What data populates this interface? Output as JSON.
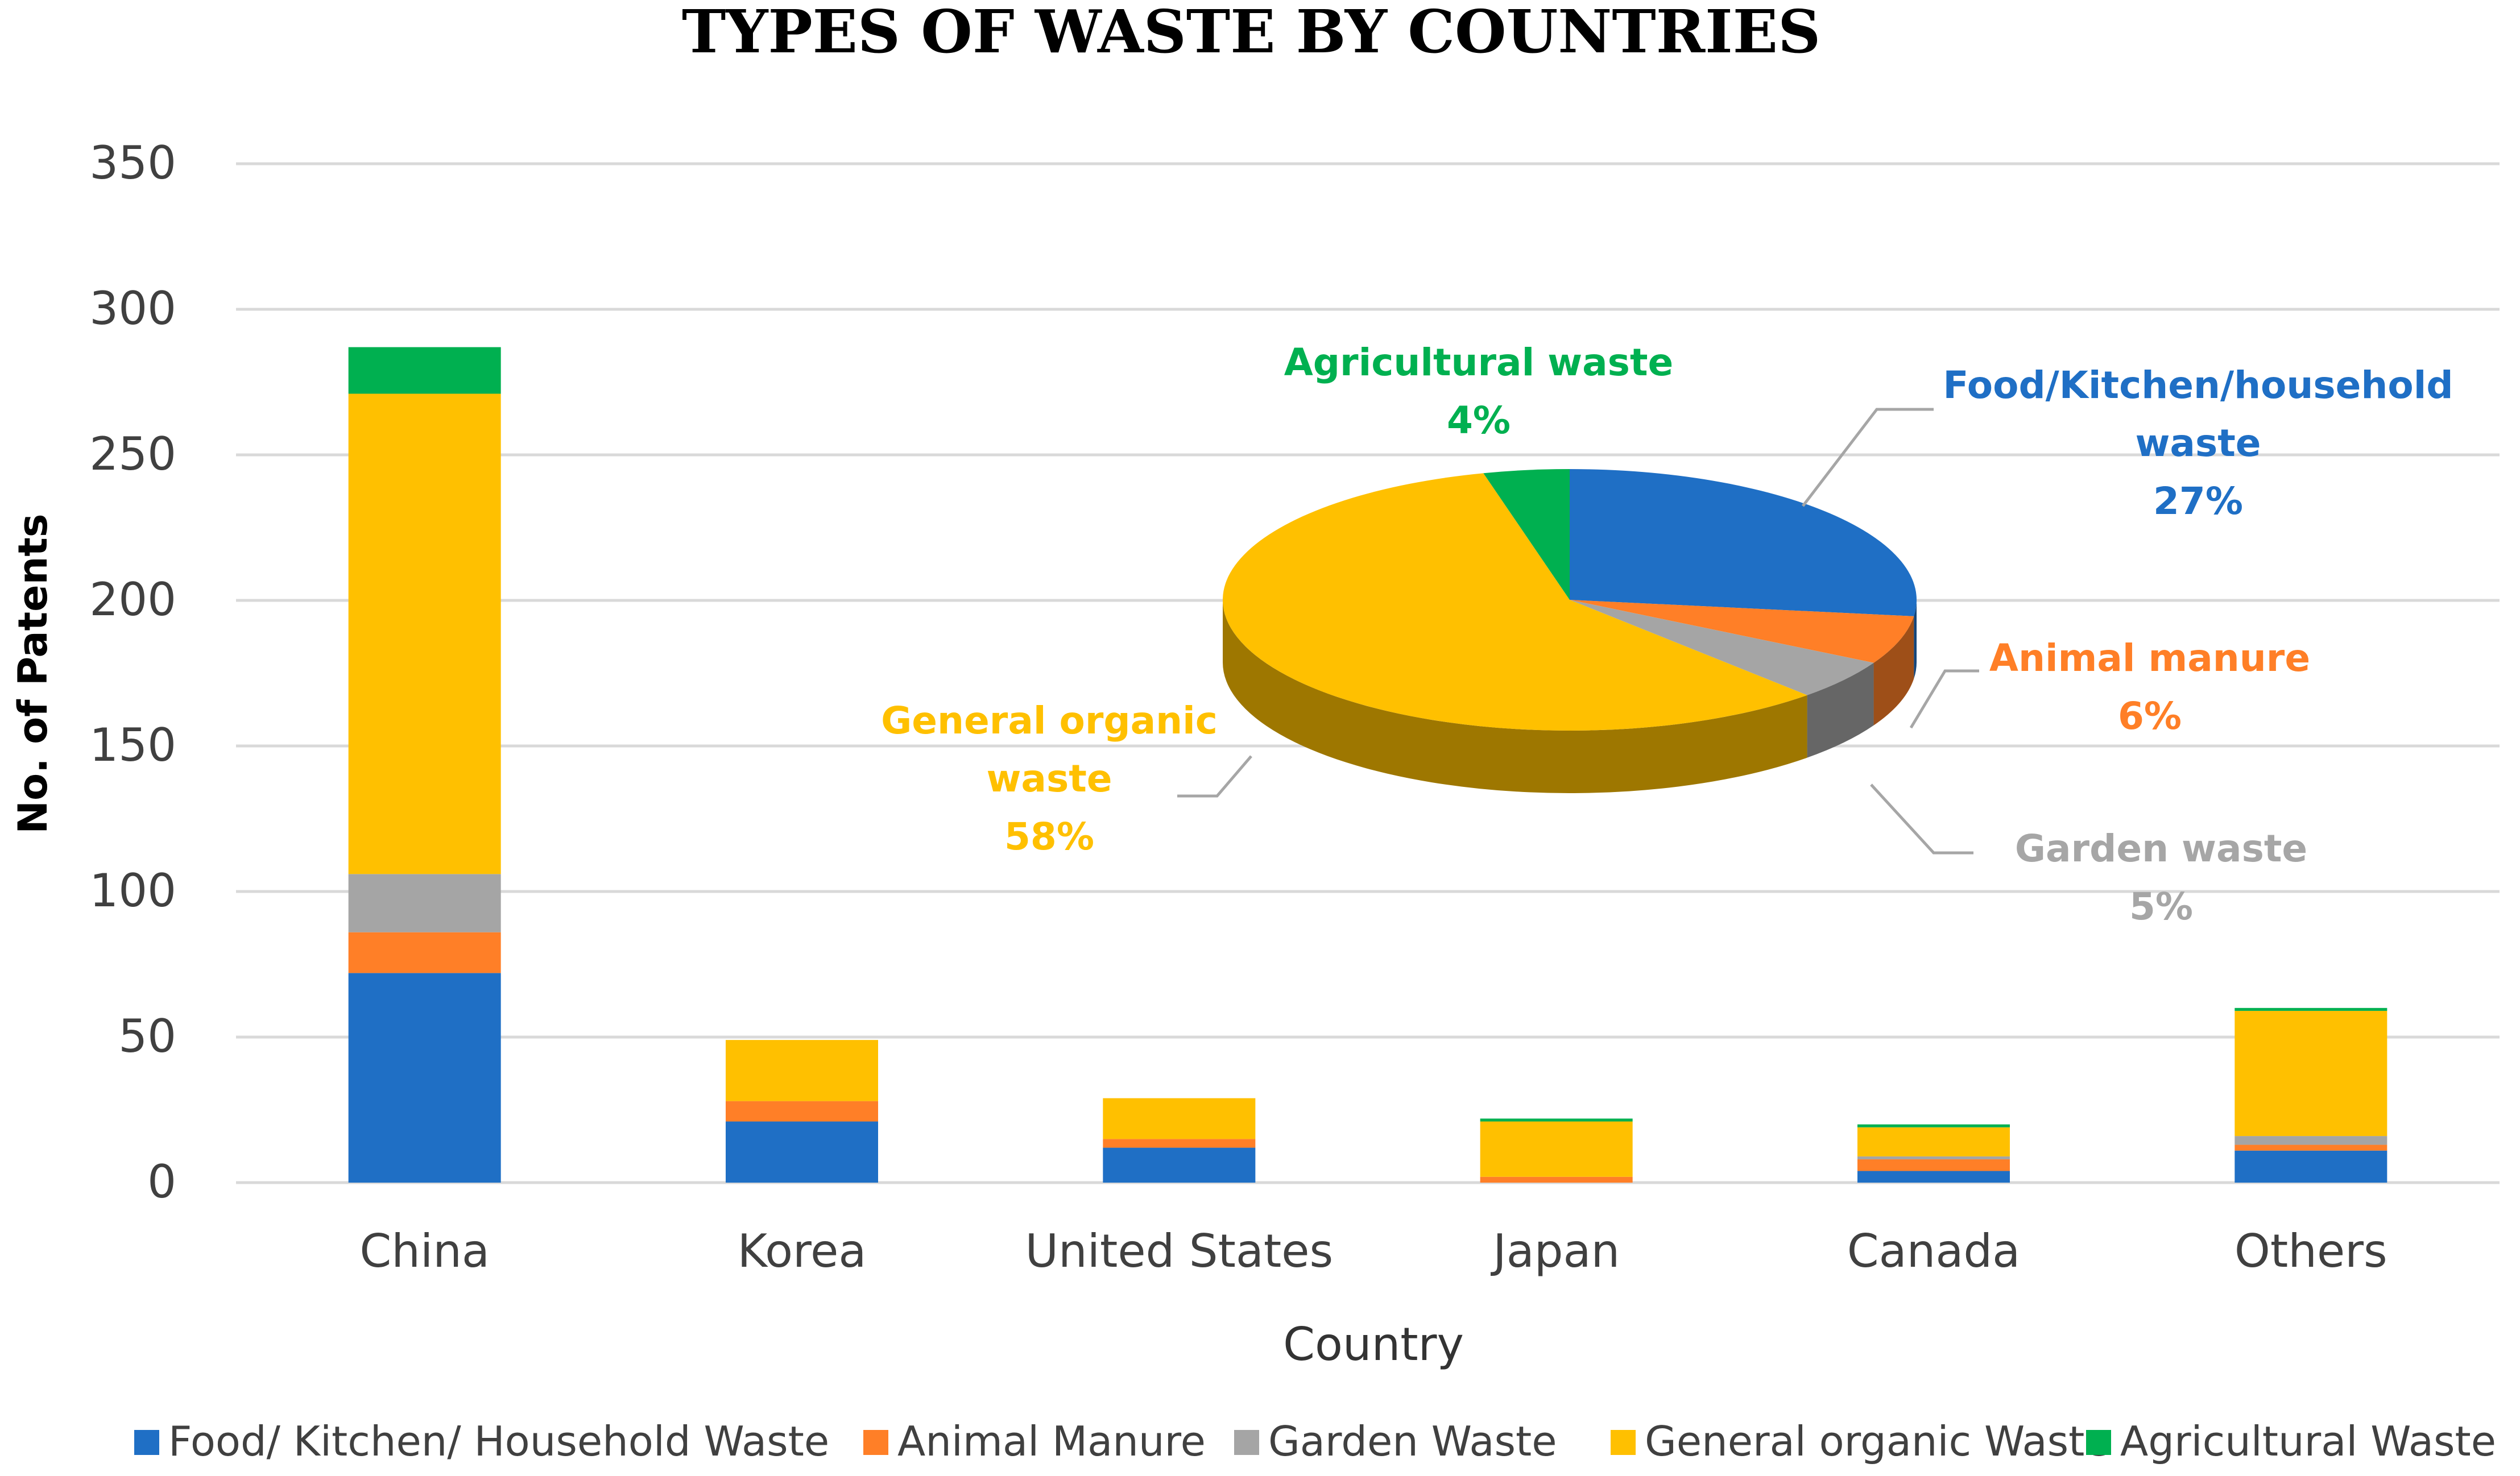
{
  "chart_data": [
    {
      "type": "bar",
      "stacked": true,
      "title": "TYPES OF WASTE BY COUNTRIES",
      "xlabel": "Country",
      "ylabel": "No. of Patents",
      "ylim": [
        0,
        350
      ],
      "yticks": [
        0,
        50,
        100,
        150,
        200,
        250,
        300,
        350
      ],
      "grid": true,
      "legend_position": "bottom",
      "categories": [
        "China",
        "Korea",
        "United States",
        "Japan",
        "Canada",
        "Others"
      ],
      "series": [
        {
          "name": "Food/ Kitchen/ Household Waste",
          "color": "#1f6fc5",
          "values": [
            72,
            21,
            12,
            0,
            4,
            11
          ]
        },
        {
          "name": "Animal Manure",
          "color": "#ff7f27",
          "values": [
            14,
            7,
            3,
            2,
            4,
            2
          ]
        },
        {
          "name": "Garden Waste",
          "color": "#a5a5a5",
          "values": [
            20,
            0,
            0,
            0,
            1,
            3
          ]
        },
        {
          "name": "General organic Waste",
          "color": "#ffc000",
          "values": [
            165,
            21,
            14,
            19,
            10,
            43
          ]
        },
        {
          "name": "Agricultural Waste",
          "color": "#00b050",
          "values": [
            16,
            0,
            0,
            1,
            1,
            1
          ]
        }
      ]
    },
    {
      "type": "pie",
      "slices": [
        {
          "name_lines": [
            "Food/Kitchen/household",
            "waste"
          ],
          "value": 27,
          "pct_label": "27%",
          "color": "#1f6fc5"
        },
        {
          "name_lines": [
            "Animal manure"
          ],
          "value": 6,
          "pct_label": "6%",
          "color": "#ff7f27"
        },
        {
          "name_lines": [
            "Garden waste"
          ],
          "value": 5,
          "pct_label": "5%",
          "color": "#a5a5a5"
        },
        {
          "name_lines": [
            "General organic",
            "waste"
          ],
          "value": 58,
          "pct_label": "58%",
          "color": "#ffc000"
        },
        {
          "name_lines": [
            "Agricultural waste"
          ],
          "value": 4,
          "pct_label": "4%",
          "color": "#00b050"
        }
      ]
    }
  ]
}
